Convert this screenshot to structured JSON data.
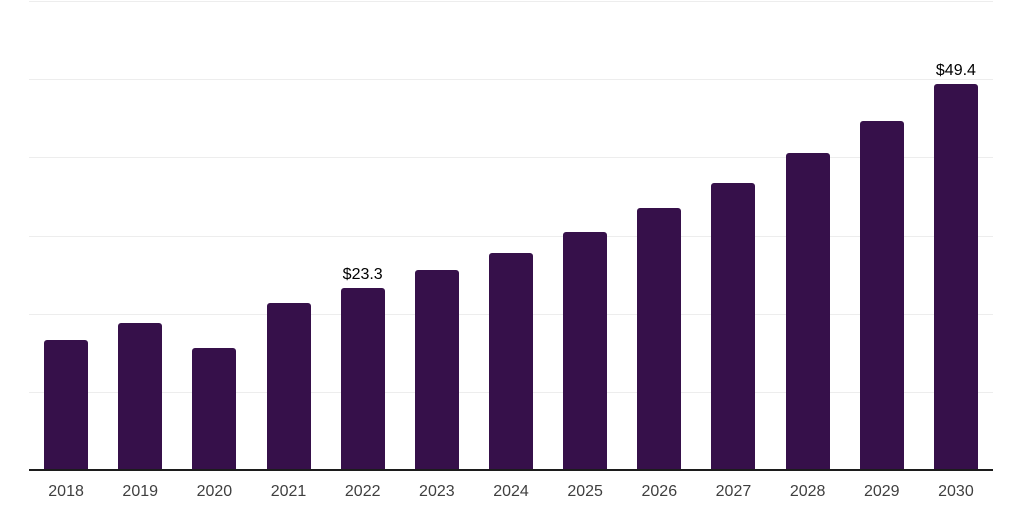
{
  "chart": {
    "background_color": "#ffffff",
    "bar_color": "#36104a",
    "gridline_color": "#ededed",
    "axis_line_color": "#1c1c1c",
    "tick_label_color": "#3f3f3f",
    "data_label_color": "#000000"
  },
  "chart_data": {
    "type": "bar",
    "title": "",
    "xlabel": "",
    "ylabel": "",
    "categories": [
      "2018",
      "2019",
      "2020",
      "2021",
      "2022",
      "2023",
      "2024",
      "2025",
      "2026",
      "2027",
      "2028",
      "2029",
      "2030"
    ],
    "values": [
      16.6,
      18.8,
      15.6,
      21.4,
      23.3,
      25.6,
      27.7,
      30.4,
      33.5,
      36.7,
      40.6,
      44.7,
      49.4
    ],
    "data_labels": [
      "",
      "",
      "",
      "",
      "$23.3",
      "",
      "",
      "",
      "",
      "",
      "",
      "",
      "$49.4"
    ],
    "ylim": [
      0,
      60
    ],
    "gridline_step": 10,
    "grid": "horizontal",
    "legend": "none",
    "y_axis_tick_labels": "none"
  }
}
